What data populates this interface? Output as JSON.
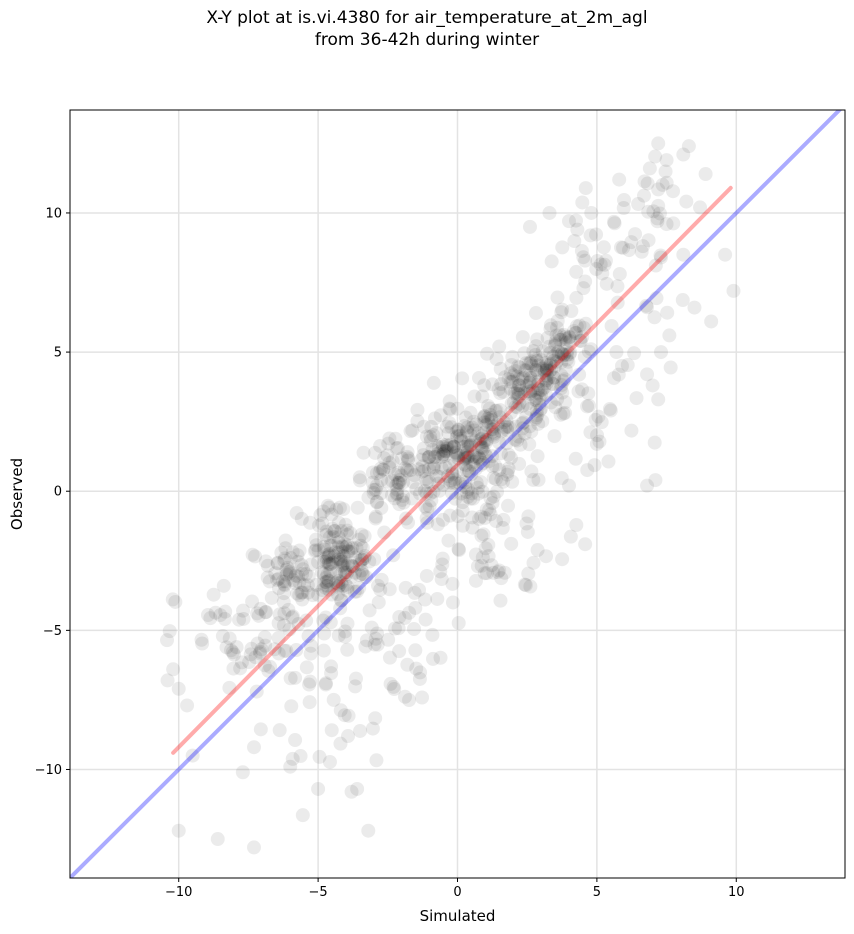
{
  "chart_data": {
    "type": "scatter",
    "title": [
      "X-Y plot at is.vi.4380 for air_temperature_at_2m_agl",
      "from 36-42h during winter"
    ],
    "xlabel": "Simulated",
    "ylabel": "Observed",
    "xlim": [
      -13.9,
      13.9
    ],
    "ylim": [
      -13.9,
      13.7
    ],
    "xticks": [
      -10,
      -5,
      0,
      5,
      10
    ],
    "yticks": [
      -10,
      -5,
      0,
      5,
      10
    ],
    "xtick_labels": [
      "−10",
      "−5",
      "0",
      "5",
      "10"
    ],
    "ytick_labels": [
      "−10",
      "−5",
      "0",
      "5",
      "10"
    ],
    "grid": true,
    "point_color": "#000000",
    "point_alpha": 0.08,
    "lines": [
      {
        "role": "1:1 reference",
        "color": "#0000ff",
        "x": [
          -13.9,
          13.9
        ],
        "y": [
          -13.9,
          13.9
        ]
      },
      {
        "role": "regression fit",
        "color": "#ff0000",
        "x": [
          -10.2,
          9.8
        ],
        "y": [
          -9.4,
          10.9
        ]
      }
    ],
    "clusters": [
      {
        "cx": 3.0,
        "cy": 4.2,
        "sx": 0.5,
        "sy": 0.5,
        "n": 70
      },
      {
        "cx": 2.0,
        "cy": 3.2,
        "sx": 0.8,
        "sy": 0.8,
        "n": 80
      },
      {
        "cx": 1.0,
        "cy": 2.0,
        "sx": 0.7,
        "sy": 0.8,
        "n": 70
      },
      {
        "cx": 0.5,
        "cy": 0.6,
        "sx": 0.8,
        "sy": 0.7,
        "n": 80
      },
      {
        "cx": -0.5,
        "cy": 1.6,
        "sx": 0.8,
        "sy": 0.7,
        "n": 70
      },
      {
        "cx": -2.0,
        "cy": 0.2,
        "sx": 1.0,
        "sy": 0.8,
        "n": 90
      },
      {
        "cx": -4.2,
        "cy": -2.7,
        "sx": 0.6,
        "sy": 0.5,
        "n": 90
      },
      {
        "cx": -4.5,
        "cy": -1.8,
        "sx": 0.8,
        "sy": 0.7,
        "n": 50
      },
      {
        "cx": -6.0,
        "cy": -3.2,
        "sx": 0.8,
        "sy": 0.8,
        "n": 50
      },
      {
        "cx": 3.8,
        "cy": 5.4,
        "sx": 0.5,
        "sy": 0.6,
        "n": 50
      },
      {
        "cx": 1.0,
        "cy": -2.0,
        "sx": 1.5,
        "sy": 1.0,
        "n": 60
      },
      {
        "cx": -3.5,
        "cy": -5.2,
        "sx": 1.5,
        "sy": 1.2,
        "n": 70
      },
      {
        "cx": -7.5,
        "cy": -5.5,
        "sx": 1.3,
        "sy": 1.1,
        "n": 60
      },
      {
        "cx": 5.5,
        "cy": 8.2,
        "sx": 1.2,
        "sy": 1.4,
        "n": 50
      },
      {
        "cx": 4.5,
        "cy": 3.0,
        "sx": 1.2,
        "sy": 1.2,
        "n": 40
      },
      {
        "cx": 7.0,
        "cy": 10.5,
        "sx": 0.8,
        "sy": 1.0,
        "n": 20
      },
      {
        "cx": -5.0,
        "cy": -8.5,
        "sx": 1.2,
        "sy": 1.0,
        "n": 25
      }
    ],
    "outliers": [
      [
        -10,
        -12.2
      ],
      [
        -8.6,
        -12.5
      ],
      [
        -7.3,
        -12.8
      ],
      [
        -3.2,
        -12.2
      ],
      [
        -3.8,
        -10.8
      ],
      [
        -3.6,
        -10.7
      ],
      [
        -5.0,
        -10.7
      ],
      [
        -7.7,
        -10.1
      ],
      [
        -7.3,
        -9.2
      ],
      [
        -6.0,
        -9.9
      ],
      [
        -9.5,
        -9.5
      ],
      [
        -10.2,
        -6.4
      ],
      [
        -10.4,
        -6.8
      ],
      [
        -10.0,
        -7.1
      ],
      [
        -9.7,
        -7.7
      ],
      [
        6.8,
        0.2
      ],
      [
        7.1,
        0.4
      ],
      [
        7.2,
        3.3
      ],
      [
        7.3,
        5.0
      ],
      [
        7.6,
        5.6
      ],
      [
        9.1,
        6.1
      ],
      [
        8.5,
        6.6
      ],
      [
        9.9,
        7.2
      ],
      [
        9.6,
        8.5
      ],
      [
        6.8,
        4.2
      ],
      [
        7.0,
        3.8
      ],
      [
        5.0,
        1.7
      ],
      [
        5.5,
        2.9
      ],
      [
        5.9,
        4.5
      ],
      [
        4.0,
        0.2
      ],
      [
        7.2,
        12.5
      ],
      [
        8.3,
        12.4
      ],
      [
        8.1,
        12.1
      ],
      [
        7.5,
        11.9
      ],
      [
        6.9,
        11.6
      ],
      [
        5.8,
        11.2
      ],
      [
        4.8,
        10.0
      ],
      [
        3.3,
        10.0
      ],
      [
        2.6,
        9.5
      ],
      [
        4.3,
        9.4
      ],
      [
        7.5,
        9.6
      ],
      [
        8.7,
        10.2
      ],
      [
        8.9,
        11.4
      ],
      [
        7.3,
        8.4
      ],
      [
        8.1,
        8.5
      ]
    ]
  }
}
